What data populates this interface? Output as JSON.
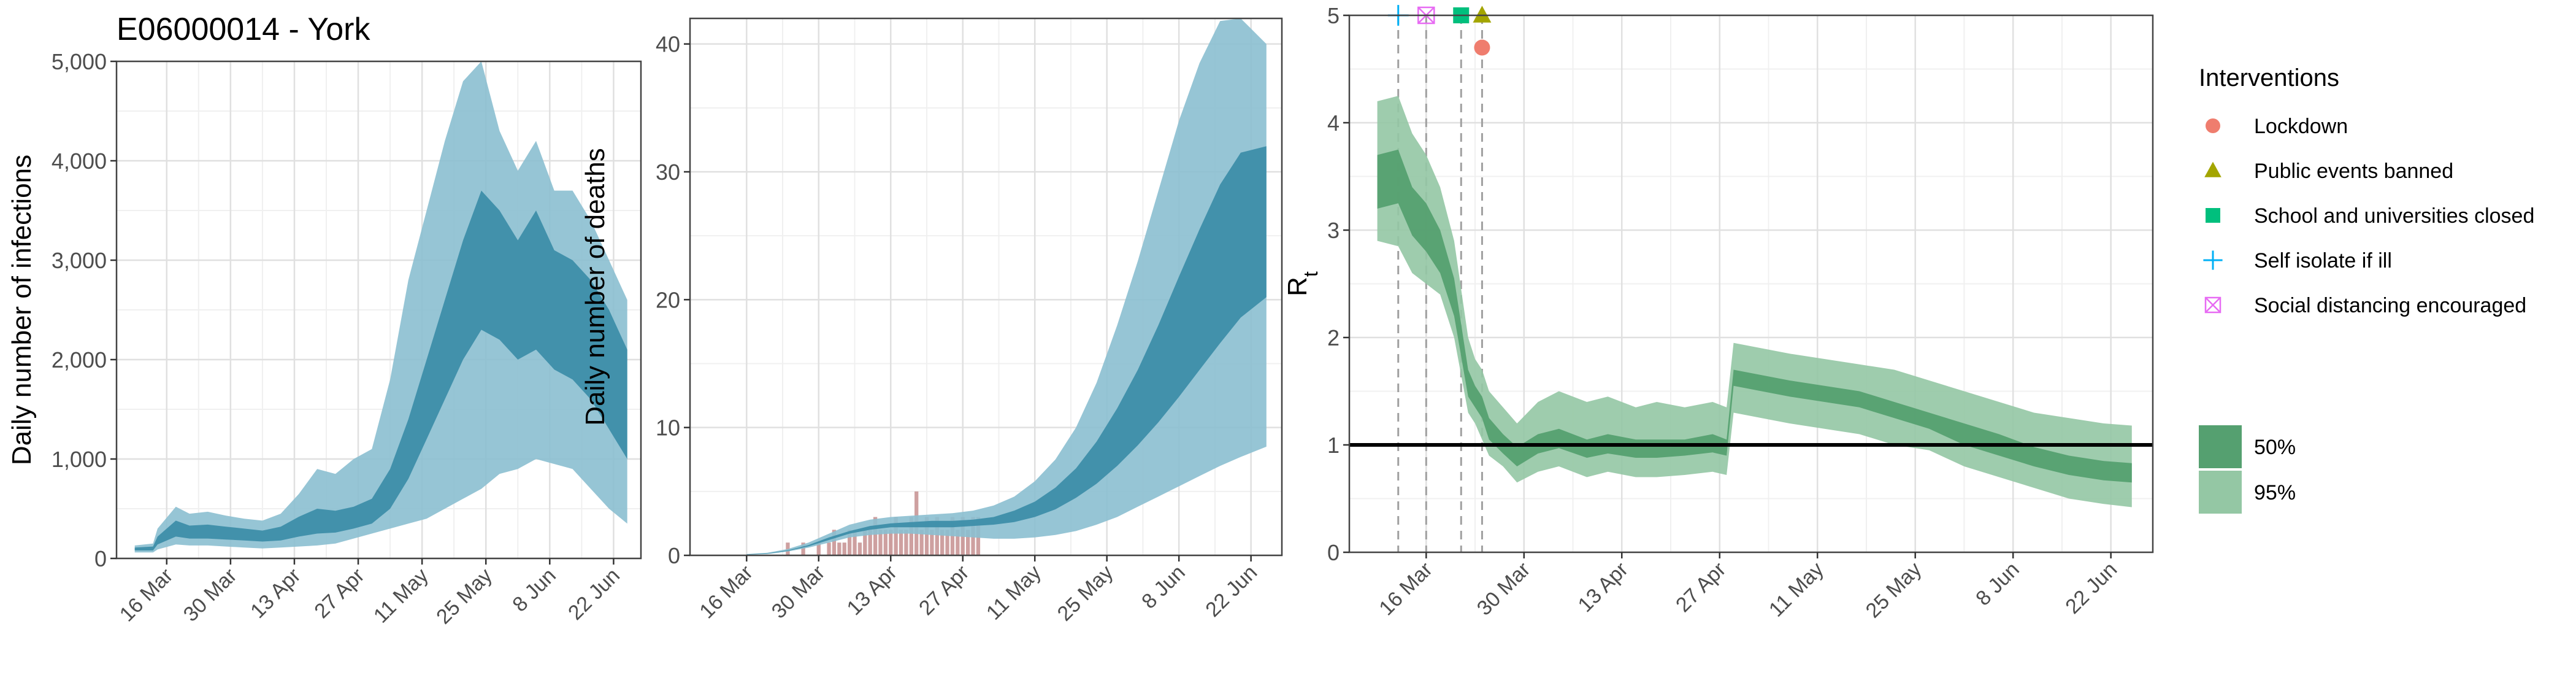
{
  "title": "E06000014 - York",
  "colors": {
    "infections_95": "#8bbfd0",
    "infections_50": "#3d8ea9",
    "deaths_bar": "#c58f8f",
    "rt_95": "#94c7a4",
    "rt_50": "#55a070",
    "lockdown": "#ef7d6e",
    "public_events": "#a3a500",
    "school": "#00bf7d",
    "self_isolate": "#00b0f6",
    "social_distancing": "#e76bf3",
    "grid_major": "#e0e0e0",
    "grid_minor": "#f0f0f0",
    "panel_border": "#444444"
  },
  "chart_data": [
    {
      "type": "area",
      "panel": "infections",
      "ylabel": "Daily number of infections",
      "xlabel": "",
      "xlim": [
        "2020-03-05",
        "2020-06-28"
      ],
      "ylim": [
        0,
        5000
      ],
      "x_ticks": [
        "16 Mar",
        "30 Mar",
        "13 Apr",
        "27 Apr",
        "11 May",
        "25 May",
        "8 Jun",
        "22 Jun"
      ],
      "x_tick_dates": [
        "2020-03-16",
        "2020-03-30",
        "2020-04-13",
        "2020-04-27",
        "2020-05-11",
        "2020-05-25",
        "2020-06-08",
        "2020-06-22"
      ],
      "y_ticks": [
        0,
        1000,
        2000,
        3000,
        4000,
        5000
      ],
      "y_tick_labels": [
        "0",
        "1,000",
        "2,000",
        "3,000",
        "4,000",
        "5,000"
      ],
      "grid": true,
      "series": [
        {
          "band": "95%",
          "x": [
            "2020-03-09",
            "2020-03-13",
            "2020-03-14",
            "2020-03-18",
            "2020-03-21",
            "2020-03-25",
            "2020-03-29",
            "2020-04-02",
            "2020-04-06",
            "2020-04-10",
            "2020-04-14",
            "2020-04-18",
            "2020-04-22",
            "2020-04-26",
            "2020-04-30",
            "2020-05-04",
            "2020-05-08",
            "2020-05-12",
            "2020-05-16",
            "2020-05-20",
            "2020-05-24",
            "2020-05-28",
            "2020-06-01",
            "2020-06-05",
            "2020-06-09",
            "2020-06-13",
            "2020-06-17",
            "2020-06-21",
            "2020-06-25"
          ],
          "upper": [
            130,
            150,
            300,
            520,
            450,
            470,
            430,
            400,
            380,
            450,
            650,
            900,
            850,
            1000,
            1100,
            1800,
            2800,
            3500,
            4200,
            4800,
            5000,
            4300,
            3900,
            4200,
            3700,
            3700,
            3400,
            3000,
            2600
          ],
          "lower": [
            60,
            60,
            90,
            140,
            130,
            130,
            120,
            110,
            100,
            110,
            120,
            130,
            150,
            200,
            250,
            300,
            350,
            400,
            500,
            600,
            700,
            850,
            900,
            1000,
            950,
            900,
            700,
            500,
            350
          ]
        },
        {
          "band": "50%",
          "x": [
            "2020-03-09",
            "2020-03-13",
            "2020-03-14",
            "2020-03-18",
            "2020-03-21",
            "2020-03-25",
            "2020-03-29",
            "2020-04-02",
            "2020-04-06",
            "2020-04-10",
            "2020-04-14",
            "2020-04-18",
            "2020-04-22",
            "2020-04-26",
            "2020-04-30",
            "2020-05-04",
            "2020-05-08",
            "2020-05-12",
            "2020-05-16",
            "2020-05-20",
            "2020-05-24",
            "2020-05-28",
            "2020-06-01",
            "2020-06-05",
            "2020-06-09",
            "2020-06-13",
            "2020-06-17",
            "2020-06-21",
            "2020-06-25"
          ],
          "upper": [
            110,
            120,
            220,
            380,
            330,
            340,
            320,
            300,
            280,
            320,
            420,
            500,
            480,
            520,
            600,
            900,
            1400,
            2000,
            2600,
            3200,
            3700,
            3500,
            3200,
            3500,
            3100,
            3000,
            2800,
            2500,
            2100
          ],
          "lower": [
            80,
            80,
            140,
            220,
            200,
            200,
            190,
            180,
            170,
            180,
            220,
            250,
            260,
            300,
            350,
            500,
            800,
            1200,
            1600,
            2000,
            2300,
            2200,
            2000,
            2100,
            1900,
            1800,
            1600,
            1300,
            1000
          ]
        }
      ]
    },
    {
      "type": "area",
      "panel": "deaths",
      "ylabel": "Daily number of deaths",
      "xlabel": "",
      "xlim": [
        "2020-03-05",
        "2020-06-28"
      ],
      "ylim": [
        0,
        42
      ],
      "x_ticks": [
        "16 Mar",
        "30 Mar",
        "13 Apr",
        "27 Apr",
        "11 May",
        "25 May",
        "8 Jun",
        "22 Jun"
      ],
      "x_tick_dates": [
        "2020-03-16",
        "2020-03-30",
        "2020-04-13",
        "2020-04-27",
        "2020-05-11",
        "2020-05-25",
        "2020-06-08",
        "2020-06-22"
      ],
      "y_ticks": [
        0,
        10,
        20,
        30,
        40
      ],
      "y_tick_labels": [
        "0",
        "10",
        "20",
        "30",
        "40"
      ],
      "grid": true,
      "series": [
        {
          "band": "95%",
          "x": [
            "2020-03-16",
            "2020-03-20",
            "2020-03-24",
            "2020-03-28",
            "2020-04-01",
            "2020-04-05",
            "2020-04-09",
            "2020-04-13",
            "2020-04-17",
            "2020-04-21",
            "2020-04-25",
            "2020-04-29",
            "2020-05-03",
            "2020-05-07",
            "2020-05-11",
            "2020-05-15",
            "2020-05-19",
            "2020-05-23",
            "2020-05-27",
            "2020-05-31",
            "2020-06-04",
            "2020-06-08",
            "2020-06-12",
            "2020-06-16",
            "2020-06-20",
            "2020-06-25"
          ],
          "upper": [
            0.1,
            0.2,
            0.5,
            1.0,
            1.7,
            2.4,
            2.8,
            3.0,
            3.1,
            3.2,
            3.3,
            3.5,
            3.9,
            4.6,
            5.8,
            7.5,
            10.0,
            13.5,
            18.0,
            23.0,
            28.5,
            34.0,
            38.5,
            41.8,
            42.0,
            40.0
          ],
          "lower": [
            0.05,
            0.1,
            0.3,
            0.6,
            1.0,
            1.4,
            1.6,
            1.7,
            1.7,
            1.6,
            1.5,
            1.4,
            1.3,
            1.3,
            1.4,
            1.6,
            1.9,
            2.4,
            3.0,
            3.8,
            4.6,
            5.4,
            6.2,
            7.0,
            7.7,
            8.5
          ]
        },
        {
          "band": "50%",
          "x": [
            "2020-03-16",
            "2020-03-20",
            "2020-03-24",
            "2020-03-28",
            "2020-04-01",
            "2020-04-05",
            "2020-04-09",
            "2020-04-13",
            "2020-04-17",
            "2020-04-21",
            "2020-04-25",
            "2020-04-29",
            "2020-05-03",
            "2020-05-07",
            "2020-05-11",
            "2020-05-15",
            "2020-05-19",
            "2020-05-23",
            "2020-05-27",
            "2020-05-31",
            "2020-06-04",
            "2020-06-08",
            "2020-06-12",
            "2020-06-16",
            "2020-06-20",
            "2020-06-25"
          ],
          "upper": [
            0.08,
            0.15,
            0.4,
            0.8,
            1.4,
            1.9,
            2.3,
            2.5,
            2.6,
            2.7,
            2.7,
            2.8,
            3.0,
            3.5,
            4.2,
            5.3,
            6.8,
            8.9,
            11.5,
            14.5,
            18.0,
            21.8,
            25.5,
            29.0,
            31.5,
            32.0
          ],
          "lower": [
            0.06,
            0.12,
            0.35,
            0.7,
            1.2,
            1.7,
            2.0,
            2.2,
            2.2,
            2.2,
            2.2,
            2.3,
            2.4,
            2.6,
            3.0,
            3.6,
            4.5,
            5.6,
            7.0,
            8.6,
            10.4,
            12.4,
            14.5,
            16.6,
            18.6,
            20.2
          ]
        }
      ],
      "bars": {
        "x": [
          "2020-03-24",
          "2020-03-27",
          "2020-03-30",
          "2020-04-01",
          "2020-04-02",
          "2020-04-03",
          "2020-04-04",
          "2020-04-05",
          "2020-04-06",
          "2020-04-07",
          "2020-04-08",
          "2020-04-09",
          "2020-04-10",
          "2020-04-11",
          "2020-04-12",
          "2020-04-13",
          "2020-04-14",
          "2020-04-15",
          "2020-04-16",
          "2020-04-17",
          "2020-04-18",
          "2020-04-19",
          "2020-04-20",
          "2020-04-21",
          "2020-04-22",
          "2020-04-23",
          "2020-04-24",
          "2020-04-25",
          "2020-04-26",
          "2020-04-27",
          "2020-04-28",
          "2020-04-29",
          "2020-04-30"
        ],
        "values": [
          1,
          1,
          1,
          1,
          2,
          1,
          1,
          2,
          2,
          1,
          2,
          2,
          3,
          2,
          2,
          2,
          3,
          2,
          2,
          3,
          5,
          2,
          3,
          2,
          3,
          2,
          2,
          3,
          2,
          3,
          2,
          3,
          3
        ]
      }
    },
    {
      "type": "area",
      "panel": "rt",
      "ylabel": "R",
      "ylabel_subscript": "t",
      "xlabel": "",
      "xlim": [
        "2020-03-05",
        "2020-06-28"
      ],
      "ylim": [
        0,
        5
      ],
      "x_ticks": [
        "16 Mar",
        "30 Mar",
        "13 Apr",
        "27 Apr",
        "11 May",
        "25 May",
        "8 Jun",
        "22 Jun"
      ],
      "x_tick_dates": [
        "2020-03-16",
        "2020-03-30",
        "2020-04-13",
        "2020-04-27",
        "2020-05-11",
        "2020-05-25",
        "2020-06-08",
        "2020-06-22"
      ],
      "y_ticks": [
        0,
        1,
        2,
        3,
        4,
        5
      ],
      "y_tick_labels": [
        "0",
        "1",
        "2",
        "3",
        "4",
        "5"
      ],
      "grid": true,
      "reference_line": 1,
      "series": [
        {
          "band": "95%",
          "x": [
            "2020-03-09",
            "2020-03-12",
            "2020-03-14",
            "2020-03-16",
            "2020-03-18",
            "2020-03-20",
            "2020-03-22",
            "2020-03-23",
            "2020-03-24",
            "2020-03-25",
            "2020-03-27",
            "2020-03-29",
            "2020-04-01",
            "2020-04-04",
            "2020-04-08",
            "2020-04-11",
            "2020-04-15",
            "2020-04-18",
            "2020-04-22",
            "2020-04-26",
            "2020-04-28",
            "2020-04-29",
            "2020-05-03",
            "2020-05-07",
            "2020-05-12",
            "2020-05-17",
            "2020-05-22",
            "2020-05-27",
            "2020-06-01",
            "2020-06-06",
            "2020-06-11",
            "2020-06-16",
            "2020-06-21",
            "2020-06-25"
          ],
          "upper": [
            4.2,
            4.25,
            3.9,
            3.7,
            3.4,
            2.9,
            2.0,
            1.8,
            1.7,
            1.5,
            1.35,
            1.2,
            1.4,
            1.5,
            1.4,
            1.45,
            1.35,
            1.4,
            1.35,
            1.4,
            1.35,
            1.95,
            1.9,
            1.85,
            1.8,
            1.75,
            1.7,
            1.6,
            1.5,
            1.4,
            1.3,
            1.25,
            1.2,
            1.18
          ],
          "lower": [
            2.9,
            2.85,
            2.6,
            2.5,
            2.4,
            2.0,
            1.3,
            1.2,
            1.05,
            0.9,
            0.8,
            0.65,
            0.75,
            0.8,
            0.7,
            0.75,
            0.7,
            0.7,
            0.72,
            0.75,
            0.72,
            1.3,
            1.25,
            1.2,
            1.15,
            1.1,
            1.0,
            0.95,
            0.8,
            0.7,
            0.6,
            0.5,
            0.45,
            0.42
          ]
        },
        {
          "band": "50%",
          "x": [
            "2020-03-09",
            "2020-03-12",
            "2020-03-14",
            "2020-03-16",
            "2020-03-18",
            "2020-03-20",
            "2020-03-22",
            "2020-03-23",
            "2020-03-24",
            "2020-03-25",
            "2020-03-27",
            "2020-03-29",
            "2020-04-01",
            "2020-04-04",
            "2020-04-08",
            "2020-04-11",
            "2020-04-15",
            "2020-04-18",
            "2020-04-22",
            "2020-04-26",
            "2020-04-28",
            "2020-04-29",
            "2020-05-03",
            "2020-05-07",
            "2020-05-12",
            "2020-05-17",
            "2020-05-22",
            "2020-05-27",
            "2020-06-01",
            "2020-06-06",
            "2020-06-11",
            "2020-06-16",
            "2020-06-21",
            "2020-06-25"
          ],
          "upper": [
            3.7,
            3.75,
            3.4,
            3.25,
            3.0,
            2.55,
            1.7,
            1.55,
            1.45,
            1.25,
            1.1,
            0.98,
            1.1,
            1.15,
            1.05,
            1.1,
            1.05,
            1.05,
            1.05,
            1.1,
            1.05,
            1.7,
            1.65,
            1.6,
            1.55,
            1.5,
            1.4,
            1.3,
            1.2,
            1.1,
            0.98,
            0.9,
            0.85,
            0.83
          ],
          "lower": [
            3.2,
            3.25,
            2.95,
            2.8,
            2.6,
            2.2,
            1.45,
            1.35,
            1.25,
            1.05,
            0.92,
            0.8,
            0.92,
            0.97,
            0.88,
            0.92,
            0.88,
            0.88,
            0.9,
            0.93,
            0.9,
            1.55,
            1.5,
            1.45,
            1.4,
            1.35,
            1.25,
            1.15,
            1.0,
            0.9,
            0.8,
            0.72,
            0.67,
            0.65
          ]
        }
      ],
      "interventions": [
        {
          "label": "Self isolate if ill",
          "date": "2020-03-12",
          "y": 5.0,
          "color": "#00b0f6",
          "shape": "plus"
        },
        {
          "label": "Social distancing encouraged",
          "date": "2020-03-16",
          "y": 5.0,
          "color": "#e76bf3",
          "shape": "square-cross"
        },
        {
          "label": "School and universities closed",
          "date": "2020-03-21",
          "y": 5.0,
          "color": "#00bf7d",
          "shape": "square"
        },
        {
          "label": "Public events banned",
          "date": "2020-03-24",
          "y": 5.0,
          "color": "#a3a500",
          "shape": "triangle"
        },
        {
          "label": "Lockdown",
          "date": "2020-03-24",
          "y": 4.7,
          "color": "#ef7d6e",
          "shape": "circle"
        }
      ]
    }
  ],
  "legend": {
    "interventions_title": "Interventions",
    "interventions": [
      {
        "label": "Lockdown",
        "shape": "circle",
        "color": "#ef7d6e"
      },
      {
        "label": "Public events banned",
        "shape": "triangle",
        "color": "#a3a500"
      },
      {
        "label": "School and universities closed",
        "shape": "square",
        "color": "#00bf7d"
      },
      {
        "label": "Self isolate if ill",
        "shape": "plus",
        "color": "#00b0f6"
      },
      {
        "label": "Social distancing encouraged",
        "shape": "square-cross",
        "color": "#e76bf3"
      }
    ],
    "bands": [
      {
        "label": "50%",
        "color": "#55a070"
      },
      {
        "label": "95%",
        "color": "#94c7a4"
      }
    ]
  }
}
